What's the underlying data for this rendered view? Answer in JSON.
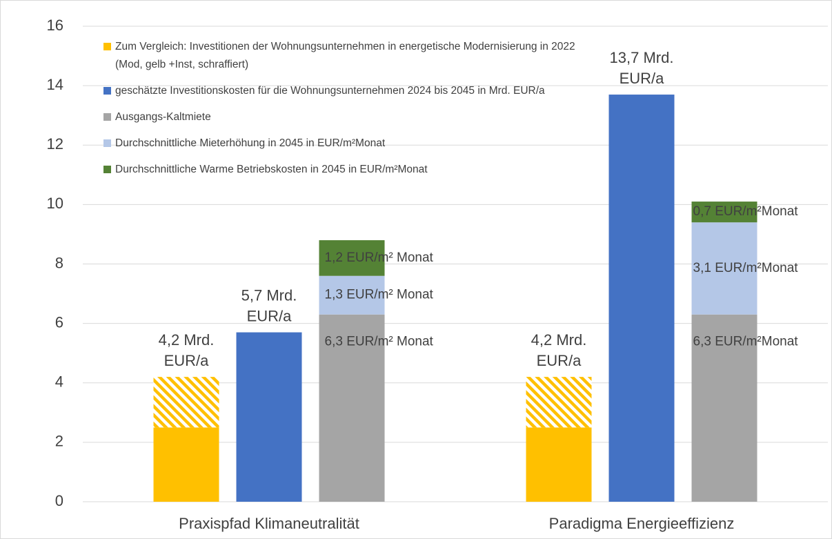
{
  "chart_data": {
    "type": "bar",
    "categories": [
      "Praxispfad Klimaneutralität",
      "Paradigma Energieeffizienz"
    ],
    "series": [
      {
        "name": "Zum Vergleich: Investitionen der Wohnungsunternehmen in energetische Modernisierung in 2022 (Mod, gelb +Inst, schraffiert)",
        "color": "#ffc000",
        "values": [
          2.5,
          2.5
        ],
        "hatched_values": [
          1.7,
          1.7
        ],
        "value_labels": [
          [
            "4,2 Mrd.",
            "EUR/a"
          ],
          [
            "4,2 Mrd.",
            "EUR/a"
          ]
        ]
      },
      {
        "name": "geschätzte Investitionskosten für die Wohnungsunternehmen 2024 bis 2045 in Mrd. EUR/a",
        "color": "#4472c4",
        "values": [
          5.7,
          13.7
        ],
        "value_labels": [
          [
            "5,7 Mrd.",
            "EUR/a"
          ],
          [
            "13,7 Mrd.",
            "EUR/a"
          ]
        ]
      },
      {
        "name": "Ausgangs-Kaltmiete",
        "color": "#a5a5a5",
        "values": [
          6.3,
          6.3
        ],
        "value_labels": [
          "6,3 EUR/m² Monat",
          "6,3 EUR/m²Monat"
        ]
      },
      {
        "name": "Durchschnittliche Mieterhöhung in 2045 in EUR/m²Monat",
        "color": "#b4c7e7",
        "values": [
          1.3,
          3.1
        ],
        "value_labels": [
          "1,3 EUR/m² Monat",
          "3,1 EUR/m²Monat"
        ]
      },
      {
        "name": "Durchschnittliche Warme Betriebskosten in 2045 in EUR/m²Monat",
        "color": "#548235",
        "values": [
          1.2,
          0.7
        ],
        "value_labels": [
          "1,2 EUR/m² Monat",
          "0,7 EUR/m²Monat"
        ]
      }
    ],
    "ylim": [
      0,
      16
    ],
    "yticks": [
      0,
      2,
      4,
      6,
      8,
      10,
      12,
      14,
      16
    ],
    "grid": true,
    "legend": "top-left"
  }
}
